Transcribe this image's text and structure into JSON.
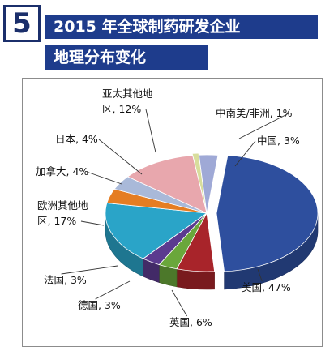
{
  "header": {
    "number": "5",
    "title_line1": "2015 年全球制药研发企业",
    "title_line2": "地理分布变化"
  },
  "chart_data": {
    "type": "pie",
    "title": "2015 年全球制药研发企业地理分布变化",
    "style": "3d-exploded",
    "slices": [
      {
        "name": "中南美/非洲",
        "value": 1,
        "label": "中南美/非洲, 1%",
        "color": "#d8dd9c"
      },
      {
        "name": "中国",
        "value": 3,
        "label": "中国, 3%",
        "color": "#9fa9d6"
      },
      {
        "name": "美国",
        "value": 47,
        "label": "美国, 47%",
        "color": "#2e4f9e"
      },
      {
        "name": "英国",
        "value": 6,
        "label": "英国, 6%",
        "color": "#a8242a"
      },
      {
        "name": "德国",
        "value": 3,
        "label": "德国, 3%",
        "color": "#6aa73b"
      },
      {
        "name": "法国",
        "value": 3,
        "label": "法国, 3%",
        "color": "#5b3a8f"
      },
      {
        "name": "欧洲其他地区",
        "value": 17,
        "label_lines": [
          "欧洲其他地",
          "区, 17%"
        ],
        "color": "#2aa4c8"
      },
      {
        "name": "加拿大",
        "value": 4,
        "label": "加拿大, 4%",
        "color": "#e57d22"
      },
      {
        "name": "日本",
        "value": 4,
        "label": "日本, 4%",
        "color": "#a9b9d9"
      },
      {
        "name": "亚太其他地区",
        "value": 12,
        "label_lines": [
          "亚太其他地",
          "区, 12%"
        ],
        "color": "#e8a7ad"
      }
    ]
  }
}
